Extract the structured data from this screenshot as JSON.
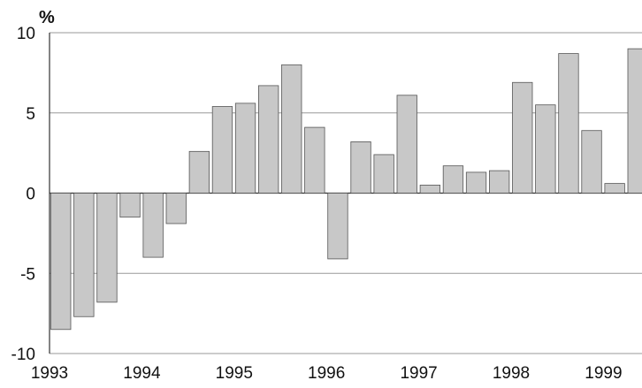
{
  "chart_data": {
    "type": "bar",
    "title": "",
    "xlabel": "",
    "ylabel": "%",
    "ylim": [
      -10,
      10
    ],
    "y_ticks": [
      10,
      5,
      0,
      -5,
      -10
    ],
    "x_tick_labels": [
      "1993",
      "1994",
      "1995",
      "1996",
      "1997",
      "1998",
      "1999"
    ],
    "bars_per_year": 4,
    "grid": true,
    "legend": "none",
    "bar_color": "#c8c8c8",
    "bar_edge_color": "#555555",
    "grid_color": "#999999",
    "values": [
      -8.5,
      -7.7,
      -6.8,
      -1.5,
      -4.0,
      -1.9,
      2.6,
      5.4,
      5.6,
      6.7,
      8.0,
      4.1,
      -4.1,
      3.2,
      2.4,
      6.1,
      0.5,
      1.7,
      1.3,
      1.4,
      6.9,
      5.5,
      8.7,
      3.9,
      0.6,
      9.0
    ]
  }
}
